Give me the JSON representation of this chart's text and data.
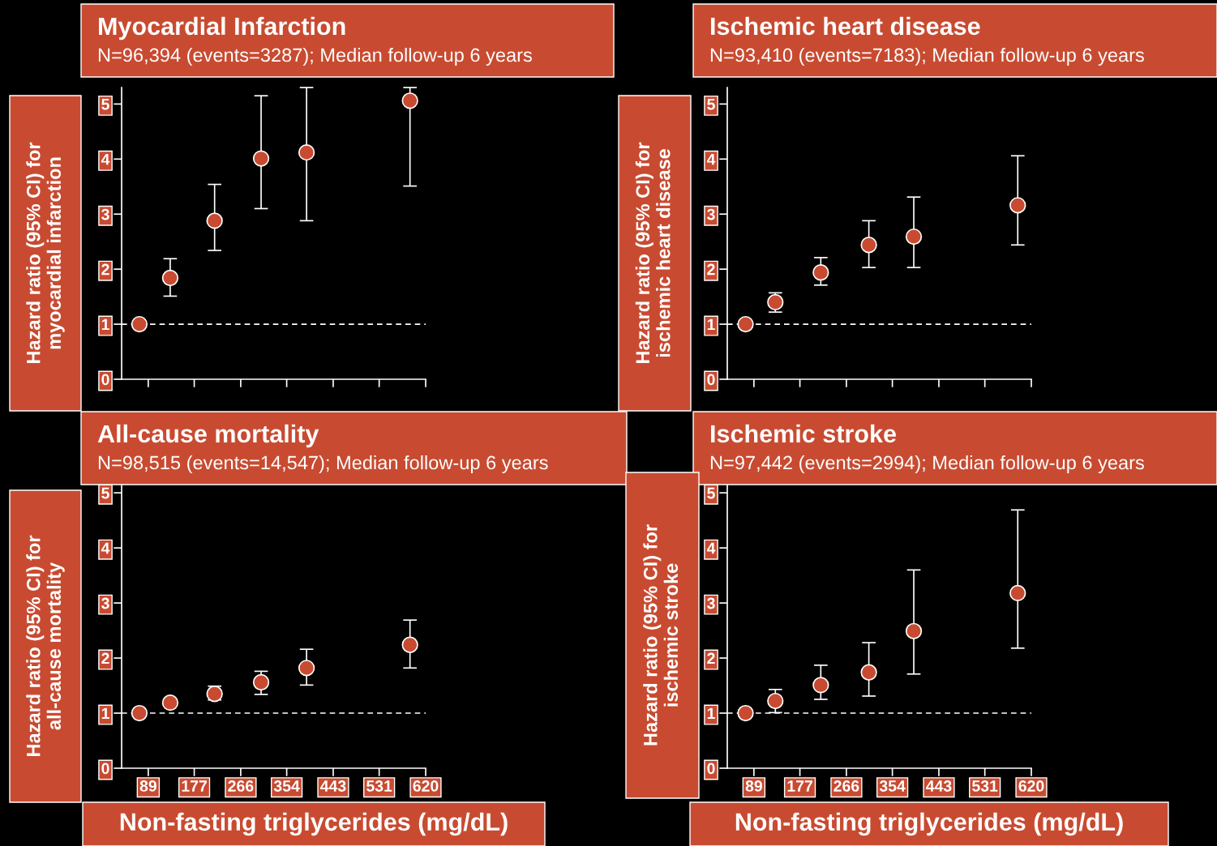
{
  "chart_data": [
    {
      "type": "scatter",
      "title": "Myocardial Infarction",
      "subtitle": "N=96,394 (events=3287); Median follow-up 6 years",
      "ylabel": "Hazard ratio (95% CI) for\nmyocardial infarction",
      "color": "#c84b31",
      "marker": "circle",
      "tick_labels": "y",
      "x": [
        72,
        131,
        216,
        305,
        392,
        590
      ],
      "values": [
        1.0,
        1.84,
        2.88,
        4.01,
        4.12,
        5.06
      ],
      "errors": [
        null,
        [
          1.51,
          2.19
        ],
        [
          2.34,
          3.54
        ],
        [
          3.1,
          5.15
        ],
        [
          2.88,
          5.3
        ],
        [
          3.51,
          5.3
        ]
      ],
      "xlim": [
        38,
        620
      ],
      "ylim": [
        0,
        5.3
      ],
      "xticks": [
        89,
        177,
        266,
        354,
        443,
        531,
        620
      ],
      "yticks": [
        0,
        1,
        2,
        3,
        4,
        5
      ],
      "ref_lines": [
        {
          "axis": "y",
          "value": 1,
          "color": "#ffffff",
          "line_style": "dashed"
        }
      ]
    },
    {
      "type": "scatter",
      "title": "Ischemic heart disease",
      "subtitle": "N=93,410 (events=7183); Median follow-up 6 years",
      "ylabel": "Hazard ratio (95% CI) for\nischemic heart disease",
      "color": "#c84b31",
      "marker": "circle",
      "tick_labels": "y",
      "x": [
        73,
        130,
        217,
        309,
        395,
        594
      ],
      "values": [
        1.0,
        1.4,
        1.94,
        2.44,
        2.59,
        3.16
      ],
      "errors": [
        null,
        [
          1.22,
          1.57
        ],
        [
          1.71,
          2.21
        ],
        [
          2.03,
          2.88
        ],
        [
          2.03,
          3.31
        ],
        [
          2.44,
          4.06
        ]
      ],
      "xlim": [
        38,
        620
      ],
      "ylim": [
        0,
        5.3
      ],
      "xticks": [
        89,
        177,
        266,
        354,
        443,
        531,
        620
      ],
      "yticks": [
        0,
        1,
        2,
        3,
        4,
        5
      ],
      "ref_lines": [
        {
          "axis": "y",
          "value": 1,
          "color": "#ffffff",
          "line_style": "dashed"
        }
      ]
    },
    {
      "type": "scatter",
      "title": "All-cause mortality",
      "subtitle": "N=98,515 (events=14,547); Median follow-up 6 years",
      "ylabel": "Hazard ratio (95% CI) for\nall-cause mortality",
      "xlabel": "Non-fasting triglycerides (mg/dL)",
      "color": "#c84b31",
      "marker": "circle",
      "x": [
        72,
        131,
        216,
        305,
        392,
        590
      ],
      "values": [
        1.0,
        1.19,
        1.35,
        1.56,
        1.82,
        2.24
      ],
      "errors": [
        null,
        null,
        [
          1.24,
          1.49
        ],
        [
          1.34,
          1.76
        ],
        [
          1.51,
          2.16
        ],
        [
          1.82,
          2.69
        ]
      ],
      "xlim": [
        38,
        620
      ],
      "ylim": [
        0,
        5.15
      ],
      "xticks": [
        89,
        177,
        266,
        354,
        443,
        531,
        620
      ],
      "yticks": [
        0,
        1,
        2,
        3,
        4,
        5
      ],
      "ref_lines": [
        {
          "axis": "y",
          "value": 1,
          "color": "#ffffff",
          "line_style": "dashed"
        }
      ]
    },
    {
      "type": "scatter",
      "title": "Ischemic stroke",
      "subtitle": "N=97,442 (events=2994); Median follow-up 6 years",
      "ylabel": "Hazard ratio (95% CI) for\nischemic stroke",
      "xlabel": "Non-fasting triglycerides (mg/dL)",
      "color": "#c84b31",
      "marker": "circle",
      "x": [
        73,
        130,
        217,
        309,
        395,
        594
      ],
      "values": [
        1.0,
        1.22,
        1.51,
        1.74,
        2.49,
        3.18
      ],
      "errors": [
        null,
        [
          1.01,
          1.43
        ],
        [
          1.25,
          1.87
        ],
        [
          1.31,
          2.28
        ],
        [
          1.71,
          3.6
        ],
        [
          2.18,
          4.69
        ]
      ],
      "xlim": [
        38,
        620
      ],
      "ylim": [
        0,
        5.15
      ],
      "xticks": [
        89,
        177,
        266,
        354,
        443,
        531,
        620
      ],
      "yticks": [
        0,
        1,
        2,
        3,
        4,
        5
      ],
      "ref_lines": [
        {
          "axis": "y",
          "value": 1,
          "color": "#ffffff",
          "line_style": "dashed"
        }
      ]
    }
  ]
}
